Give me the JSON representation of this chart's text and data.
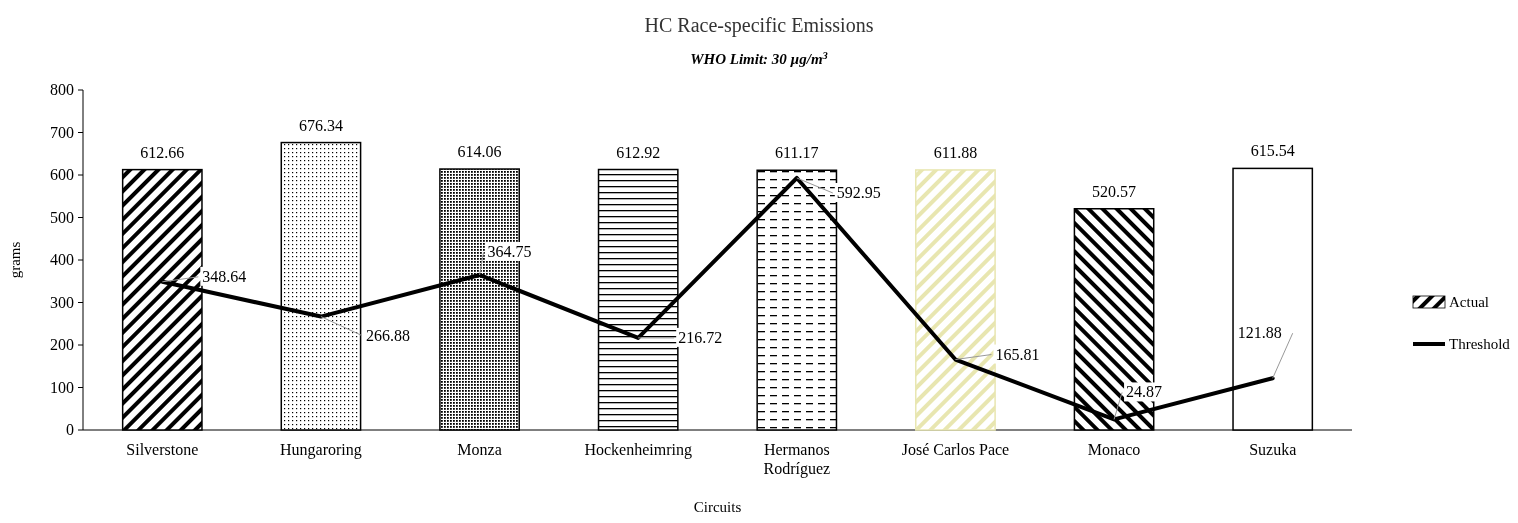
{
  "chart_data": {
    "type": "bar",
    "title": "HC Race-specific Emissions",
    "subtitle": "WHO Limit: 30 µg/m$^{3}$",
    "xlabel": "Circuits",
    "ylabel": "grams",
    "categories": [
      "Silverstone",
      "Hungaroring",
      "Monza",
      "Hockenheimring",
      "Hermanos Rodríguez",
      "José Carlos Pace",
      "Monaco",
      "Suzuka"
    ],
    "series": [
      {
        "name": "Actual",
        "colors": [
          "#000000",
          "#000000",
          "#000000",
          "#000000",
          "#000000",
          "#e8e6b0",
          "#000000",
          "#ffffff"
        ],
        "values": [
          612.66,
          676.34,
          614.06,
          612.92,
          611.17,
          611.88,
          520.57,
          615.54
        ]
      },
      {
        "name": "Threshold",
        "type": "line",
        "color": "#000000",
        "values": [
          348.64,
          266.88,
          364.75,
          216.72,
          592.95,
          165.81,
          24.87,
          121.88
        ]
      }
    ],
    "ylim": [
      0,
      800
    ],
    "yticks": [
      0,
      100,
      200,
      300,
      400,
      500,
      600,
      700,
      800
    ],
    "data_labels": true,
    "legend": "right",
    "grid": false
  }
}
